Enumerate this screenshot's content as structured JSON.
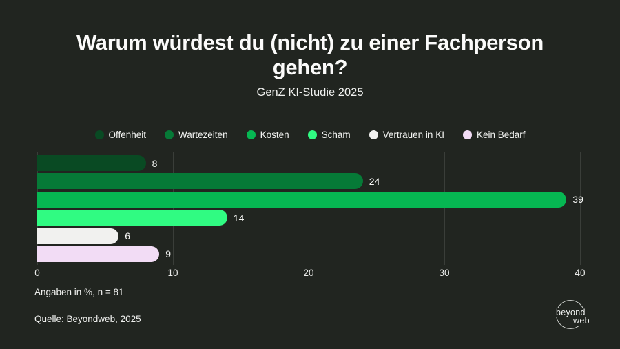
{
  "page": {
    "title": "Warum würdest du (nicht) zu einer Fachperson gehen?",
    "subtitle": "GenZ KI-Studie 2025",
    "footnote": "Angaben in %, n = 81",
    "source": "Quelle: Beyondweb, 2025"
  },
  "logo": {
    "line1": "beyond",
    "line2": "web"
  },
  "chart_data": {
    "type": "bar",
    "orientation": "horizontal",
    "title": "Warum würdest du (nicht) zu einer Fachperson gehen?",
    "subtitle": "GenZ KI-Studie 2025",
    "categories": [
      "Offenheit",
      "Wartezeiten",
      "Kosten",
      "Scham",
      "Vertrauen in KI",
      "Kein Bedarf"
    ],
    "values": [
      8,
      24,
      39,
      14,
      6,
      9
    ],
    "colors": [
      "#094a23",
      "#067a37",
      "#06b752",
      "#30fb82",
      "#f1f1ef",
      "#f2dcf5"
    ],
    "unit": "%",
    "xlim": [
      0,
      40
    ],
    "xticks": [
      0,
      10,
      20,
      30,
      40
    ],
    "grid": "vertical",
    "legend_position": "top",
    "value_labels": "outside-end"
  },
  "colors": {
    "background": "#212520",
    "text": "#f3f4f2",
    "gridline": "#3a3e39"
  }
}
